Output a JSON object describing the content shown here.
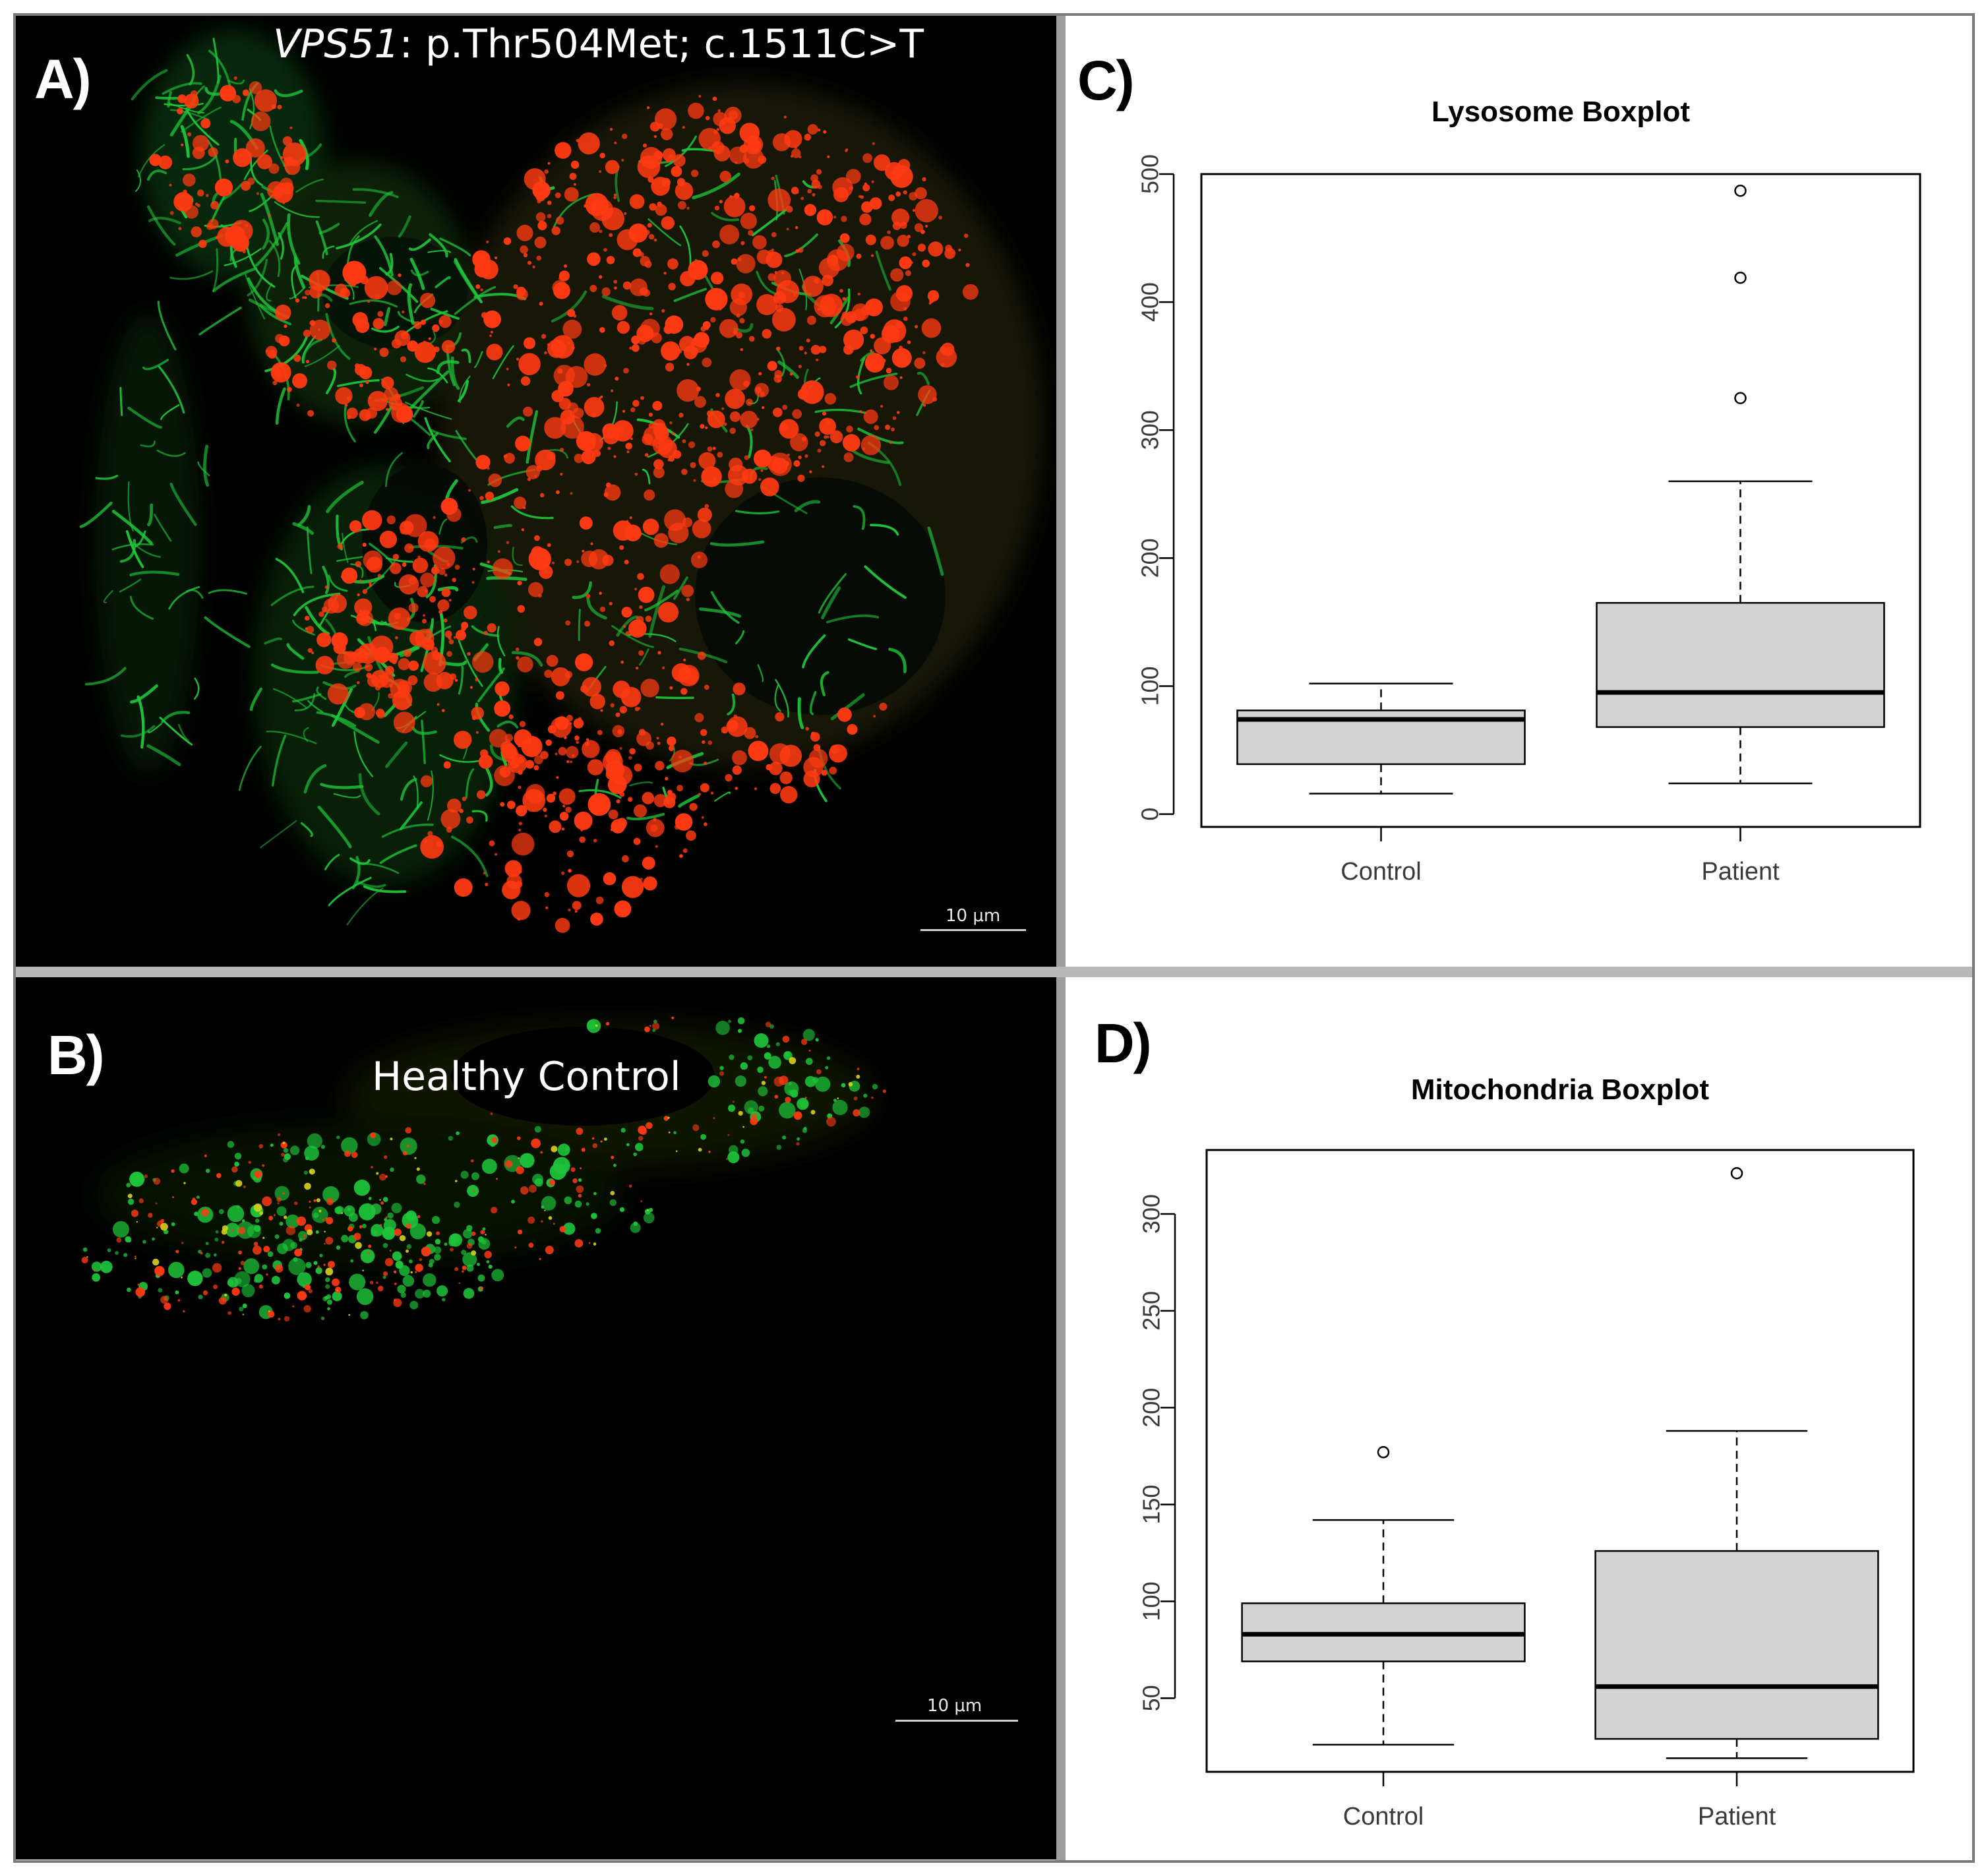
{
  "panels": {
    "a": {
      "label": "A)",
      "title_gene": "VPS51",
      "title_rest": ": p.Thr504Met; c.1511C>T",
      "scale_bar": "10 μm"
    },
    "b": {
      "label": "B)",
      "title": "Healthy Control",
      "scale_bar": "10 μm"
    },
    "c": {
      "label": "C)"
    },
    "d": {
      "label": "D)"
    }
  },
  "colors": {
    "lysosome_red": "#ff3a12",
    "mitochondria_green": "#1ec43a",
    "box_fill": "#d3d3d3",
    "background": "#000000"
  },
  "chart_data": [
    {
      "type": "boxplot",
      "title": "Lysosome Boxplot",
      "xlabel": "",
      "ylabel": "",
      "categories": [
        "Control",
        "Patient"
      ],
      "ylim": [
        -10,
        500
      ],
      "yticks": [
        0,
        100,
        200,
        300,
        400,
        500
      ],
      "boxes": [
        {
          "name": "Control",
          "whisker_low": 16,
          "q1": 39,
          "median": 74,
          "q3": 81,
          "whisker_high": 102,
          "outliers": []
        },
        {
          "name": "Patient",
          "whisker_low": 24,
          "q1": 68,
          "median": 95,
          "q3": 165,
          "whisker_high": 260,
          "outliers": [
            325,
            419,
            487
          ]
        }
      ],
      "grid": false
    },
    {
      "type": "boxplot",
      "title": "Mitochondria Boxplot",
      "xlabel": "",
      "ylabel": "",
      "categories": [
        "Control",
        "Patient"
      ],
      "ylim": [
        12,
        333
      ],
      "yticks": [
        50,
        100,
        150,
        200,
        250,
        300
      ],
      "boxes": [
        {
          "name": "Control",
          "whisker_low": 26,
          "q1": 69,
          "median": 83,
          "q3": 99,
          "whisker_high": 142,
          "outliers": [
            177
          ]
        },
        {
          "name": "Patient",
          "whisker_low": 19,
          "q1": 29,
          "median": 56,
          "q3": 126,
          "whisker_high": 188,
          "outliers": [
            321
          ]
        }
      ],
      "grid": false
    }
  ]
}
